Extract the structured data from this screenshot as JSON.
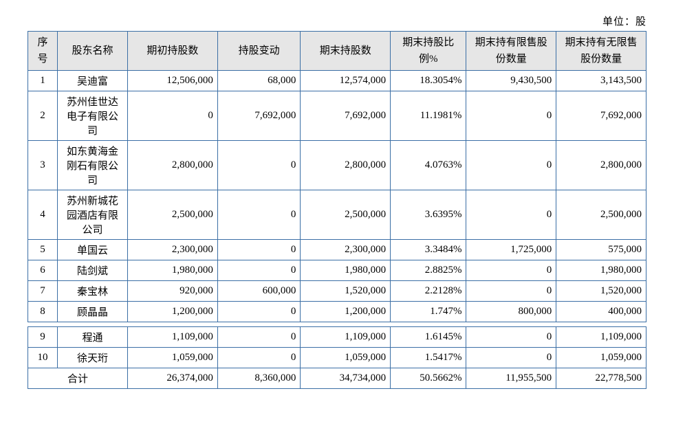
{
  "unit_label": "单位：股",
  "columns": [
    "序号",
    "股东名称",
    "期初持股数",
    "持股变动",
    "期末持股数",
    "期末持股比例%",
    "期末持有限售股份数量",
    "期末持有无限售股份数量"
  ],
  "rows": [
    {
      "idx": "1",
      "name": "吴迪富",
      "init": "12,506,000",
      "chg": "68,000",
      "end": "12,574,000",
      "pct": "18.3054%",
      "rest": "9,430,500",
      "free": "3,143,500"
    },
    {
      "idx": "2",
      "name": "苏州佳世达电子有限公司",
      "init": "0",
      "chg": "7,692,000",
      "end": "7,692,000",
      "pct": "11.1981%",
      "rest": "0",
      "free": "7,692,000"
    },
    {
      "idx": "3",
      "name": "如东黄海金刚石有限公司",
      "init": "2,800,000",
      "chg": "0",
      "end": "2,800,000",
      "pct": "4.0763%",
      "rest": "0",
      "free": "2,800,000"
    },
    {
      "idx": "4",
      "name": "苏州新城花园酒店有限公司",
      "init": "2,500,000",
      "chg": "0",
      "end": "2,500,000",
      "pct": "3.6395%",
      "rest": "0",
      "free": "2,500,000"
    },
    {
      "idx": "5",
      "name": "单国云",
      "init": "2,300,000",
      "chg": "0",
      "end": "2,300,000",
      "pct": "3.3484%",
      "rest": "1,725,000",
      "free": "575,000"
    },
    {
      "idx": "6",
      "name": "陆剑斌",
      "init": "1,980,000",
      "chg": "0",
      "end": "1,980,000",
      "pct": "2.8825%",
      "rest": "0",
      "free": "1,980,000"
    },
    {
      "idx": "7",
      "name": "秦宝林",
      "init": "920,000",
      "chg": "600,000",
      "end": "1,520,000",
      "pct": "2.2128%",
      "rest": "0",
      "free": "1,520,000"
    },
    {
      "idx": "8",
      "name": "顾晶晶",
      "init": "1,200,000",
      "chg": "0",
      "end": "1,200,000",
      "pct": "1.747%",
      "rest": "800,000",
      "free": "400,000"
    }
  ],
  "rows2": [
    {
      "idx": "9",
      "name": "程通",
      "init": "1,109,000",
      "chg": "0",
      "end": "1,109,000",
      "pct": "1.6145%",
      "rest": "0",
      "free": "1,109,000"
    },
    {
      "idx": "10",
      "name": "徐天珩",
      "init": "1,059,000",
      "chg": "0",
      "end": "1,059,000",
      "pct": "1.5417%",
      "rest": "0",
      "free": "1,059,000"
    }
  ],
  "total": {
    "label": "合计",
    "init": "26,374,000",
    "chg": "8,360,000",
    "end": "34,734,000",
    "pct": "50.5662%",
    "rest": "11,955,500",
    "free": "22,778,500"
  }
}
